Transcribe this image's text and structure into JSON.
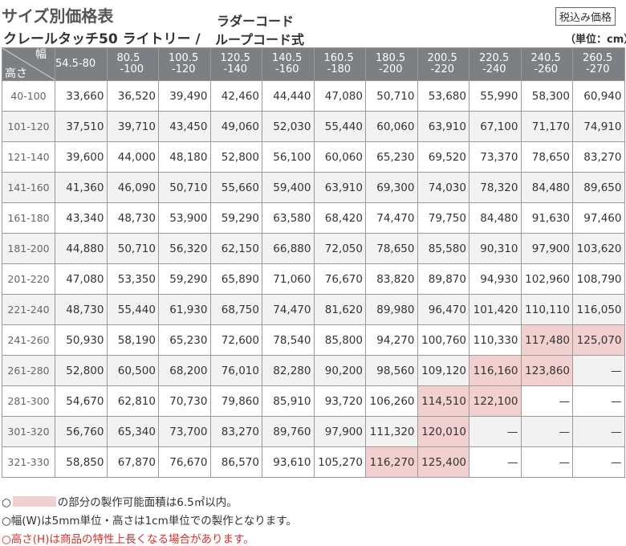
{
  "header": {
    "title": "サイズ別価格表",
    "subtitle_left": "クレールタッチ50 ライトリー /",
    "subtitle_right_top": "ラダーコード",
    "subtitle_right_bottom": "ループコード式",
    "tax_badge": "税込み価格",
    "unit": "（単位：cm）"
  },
  "table": {
    "corner_width_label": "幅",
    "corner_height_label": "高さ",
    "columns": [
      {
        "l1": "54.5-80",
        "l2": ""
      },
      {
        "l1": "80.5",
        "l2": "-100"
      },
      {
        "l1": "100.5",
        "l2": "-120"
      },
      {
        "l1": "120.5",
        "l2": "-140"
      },
      {
        "l1": "140.5",
        "l2": "-160"
      },
      {
        "l1": "160.5",
        "l2": "-180"
      },
      {
        "l1": "180.5",
        "l2": "-200"
      },
      {
        "l1": "200.5",
        "l2": "-220"
      },
      {
        "l1": "220.5",
        "l2": "-240"
      },
      {
        "l1": "240.5",
        "l2": "-260"
      },
      {
        "l1": "260.5",
        "l2": "-270"
      }
    ],
    "rows": [
      {
        "h": "40-100",
        "cells": [
          "33,660",
          "36,520",
          "39,490",
          "42,460",
          "44,440",
          "47,080",
          "50,710",
          "53,680",
          "55,990",
          "58,300",
          "60,940"
        ]
      },
      {
        "h": "101-120",
        "cells": [
          "37,510",
          "39,710",
          "43,450",
          "49,060",
          "52,030",
          "55,440",
          "60,060",
          "63,910",
          "67,100",
          "71,170",
          "74,910"
        ]
      },
      {
        "h": "121-140",
        "cells": [
          "39,600",
          "44,000",
          "48,180",
          "52,800",
          "56,100",
          "60,060",
          "65,230",
          "69,520",
          "73,370",
          "78,650",
          "83,270"
        ]
      },
      {
        "h": "141-160",
        "cells": [
          "41,360",
          "46,090",
          "50,710",
          "55,660",
          "59,400",
          "63,910",
          "69,300",
          "74,030",
          "78,320",
          "84,480",
          "89,650"
        ]
      },
      {
        "h": "161-180",
        "cells": [
          "43,340",
          "48,730",
          "53,900",
          "59,290",
          "63,580",
          "68,420",
          "74,470",
          "79,750",
          "84,480",
          "91,630",
          "97,460"
        ]
      },
      {
        "h": "181-200",
        "cells": [
          "44,880",
          "50,710",
          "56,320",
          "62,150",
          "66,880",
          "72,050",
          "78,650",
          "85,580",
          "90,310",
          "97,900",
          "103,620"
        ]
      },
      {
        "h": "201-220",
        "cells": [
          "47,080",
          "53,350",
          "59,290",
          "65,890",
          "71,060",
          "76,670",
          "83,820",
          "89,870",
          "94,930",
          "102,960",
          "108,790"
        ]
      },
      {
        "h": "221-240",
        "cells": [
          "48,730",
          "55,440",
          "61,930",
          "68,750",
          "74,470",
          "81,620",
          "89,980",
          "96,470",
          "101,420",
          "110,110",
          "116,050"
        ]
      },
      {
        "h": "241-260",
        "cells": [
          "50,930",
          "58,190",
          "65,230",
          "72,600",
          "78,540",
          "85,800",
          "94,270",
          "100,760",
          "110,330",
          "117,480",
          "125,070"
        ]
      },
      {
        "h": "261-280",
        "cells": [
          "52,800",
          "60,500",
          "68,200",
          "76,010",
          "82,280",
          "90,200",
          "98,560",
          "109,120",
          "116,160",
          "123,860",
          "—"
        ]
      },
      {
        "h": "281-300",
        "cells": [
          "54,670",
          "62,810",
          "70,730",
          "79,860",
          "85,910",
          "93,720",
          "106,260",
          "114,510",
          "122,100",
          "—",
          "—"
        ]
      },
      {
        "h": "301-320",
        "cells": [
          "56,760",
          "65,340",
          "73,700",
          "83,270",
          "89,760",
          "97,900",
          "111,320",
          "120,010",
          "—",
          "—",
          "—"
        ]
      },
      {
        "h": "321-330",
        "cells": [
          "58,850",
          "67,870",
          "76,670",
          "86,570",
          "93,610",
          "105,270",
          "116,270",
          "125,400",
          "—",
          "—",
          "—"
        ]
      }
    ],
    "highlight_color": "#f2d0d0",
    "minimum_price_color": "#d9302c",
    "header_color": "#7c7f83"
  },
  "notes": {
    "n1_prefix": "○",
    "n1_suffix": "の部分の製作可能面積は6.5㎡以内。",
    "n2": "○幅(W)は5mm単位・高さは1cm単位での製作となります。",
    "n3": "○高さ(H)は商品の特性上長くなる場合があります。"
  }
}
